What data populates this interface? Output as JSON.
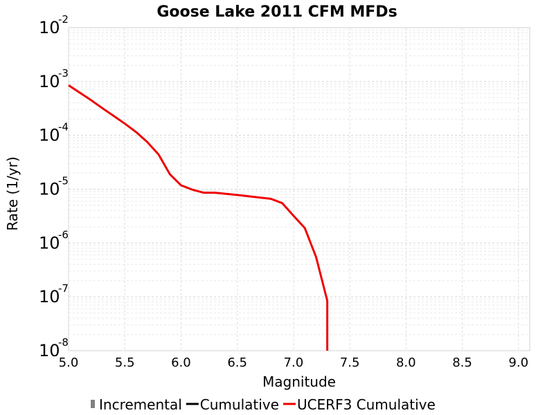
{
  "chart_data": {
    "type": "line",
    "title": "Goose Lake 2011 CFM MFDs",
    "xlabel": "Magnitude",
    "ylabel": "Rate (1/yr)",
    "xlim": [
      5.0,
      9.1
    ],
    "ylim": [
      1e-08,
      0.01
    ],
    "y_scale": "log",
    "grid": true,
    "x_ticks": [
      "5.0",
      "5.5",
      "6.0",
      "6.5",
      "7.0",
      "7.5",
      "8.0",
      "8.5",
      "9.0"
    ],
    "x_tick_values": [
      5.0,
      5.5,
      6.0,
      6.5,
      7.0,
      7.5,
      8.0,
      8.5,
      9.0
    ],
    "y_ticks": [
      {
        "base": "10",
        "exp": "-2",
        "value": 0.01
      },
      {
        "base": "10",
        "exp": "-3",
        "value": 0.001
      },
      {
        "base": "10",
        "exp": "-4",
        "value": 0.0001
      },
      {
        "base": "10",
        "exp": "-5",
        "value": 1e-05
      },
      {
        "base": "10",
        "exp": "-6",
        "value": 1e-06
      },
      {
        "base": "10",
        "exp": "-7",
        "value": 1e-07
      },
      {
        "base": "10",
        "exp": "-8",
        "value": 1e-08
      }
    ],
    "legend": {
      "placement": "bottom",
      "entries": [
        {
          "label": "Incremental",
          "color": "#808080",
          "symbol": "bar"
        },
        {
          "label": "Cumulative",
          "color": "#000000",
          "symbol": "line"
        },
        {
          "label": "UCERF3 Cumulative",
          "color": "#ee0000",
          "symbol": "line"
        }
      ]
    },
    "series": [
      {
        "name": "UCERF3 Cumulative",
        "color": "#ee0000",
        "x": [
          5.0,
          5.1,
          5.2,
          5.3,
          5.4,
          5.5,
          5.6,
          5.7,
          5.8,
          5.9,
          6.0,
          6.1,
          6.2,
          6.3,
          6.4,
          6.5,
          6.6,
          6.7,
          6.8,
          6.9,
          7.0,
          7.1,
          7.2,
          7.3,
          7.3
        ],
        "y": [
          0.00085,
          0.00062,
          0.00045,
          0.00032,
          0.00023,
          0.000165,
          0.000115,
          7.5e-05,
          4.4e-05,
          1.9e-05,
          1.18e-05,
          9.8e-06,
          8.6e-06,
          8.6e-06,
          8.2e-06,
          7.8e-06,
          7.4e-06,
          7e-06,
          6.6e-06,
          5.5e-06,
          3.2e-06,
          1.9e-06,
          5.5e-07,
          8.5e-08,
          1e-08
        ]
      }
    ]
  }
}
